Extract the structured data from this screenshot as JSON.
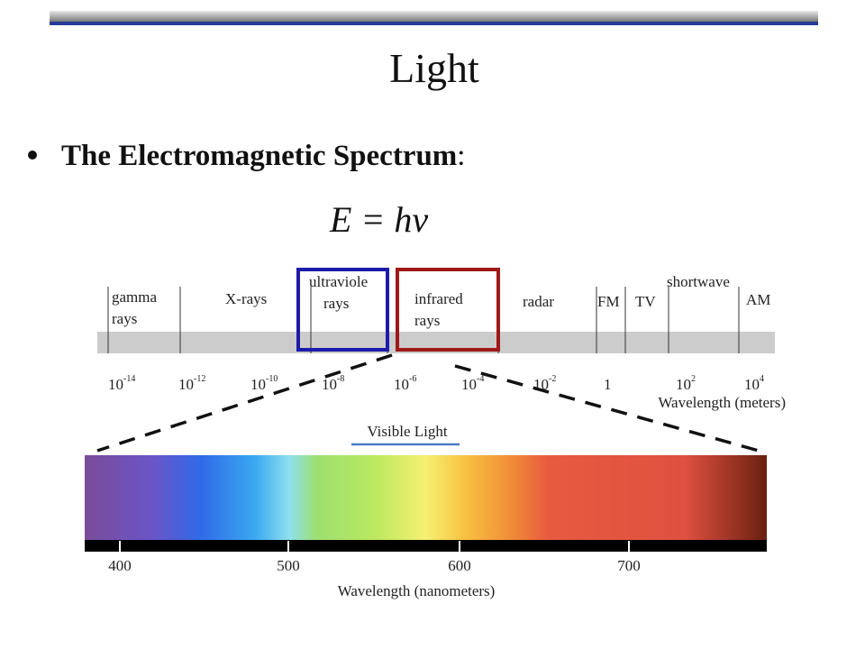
{
  "title": "Light",
  "bullet": {
    "bold": "The Electromagnetic Spectrum",
    "rest": ":"
  },
  "equation": "E = hν",
  "spectrum": {
    "bands": [
      {
        "lines": [
          "gamma",
          "rays"
        ]
      },
      {
        "lines": [
          "X-rays"
        ]
      },
      {
        "lines": [
          "ultraviole",
          "rays"
        ]
      },
      {
        "lines": [
          "infrared",
          "rays"
        ]
      },
      {
        "lines": [
          "radar"
        ]
      },
      {
        "lines": [
          "FM"
        ]
      },
      {
        "lines": [
          "TV"
        ]
      },
      {
        "lines": [
          "shortwave"
        ]
      },
      {
        "lines": [
          "AM"
        ]
      }
    ],
    "ticks": [
      {
        "base": "10",
        "exponent": "-14"
      },
      {
        "base": "10",
        "exponent": "-12"
      },
      {
        "base": "10",
        "exponent": "-10"
      },
      {
        "base": "10",
        "exponent": "-8"
      },
      {
        "base": "10",
        "exponent": "-6"
      },
      {
        "base": "10",
        "exponent": "-4"
      },
      {
        "base": "10",
        "exponent": "-2"
      },
      {
        "base": "1"
      },
      {
        "base": "10",
        "exponent": "2"
      },
      {
        "base": "10",
        "exponent": "4"
      }
    ],
    "axis_label": "Wavelength (meters)"
  },
  "visible": {
    "label": "Visible Light",
    "ticks": [
      "400",
      "500",
      "600",
      "700"
    ],
    "axis_label": "Wavelength (nanometers)"
  }
}
